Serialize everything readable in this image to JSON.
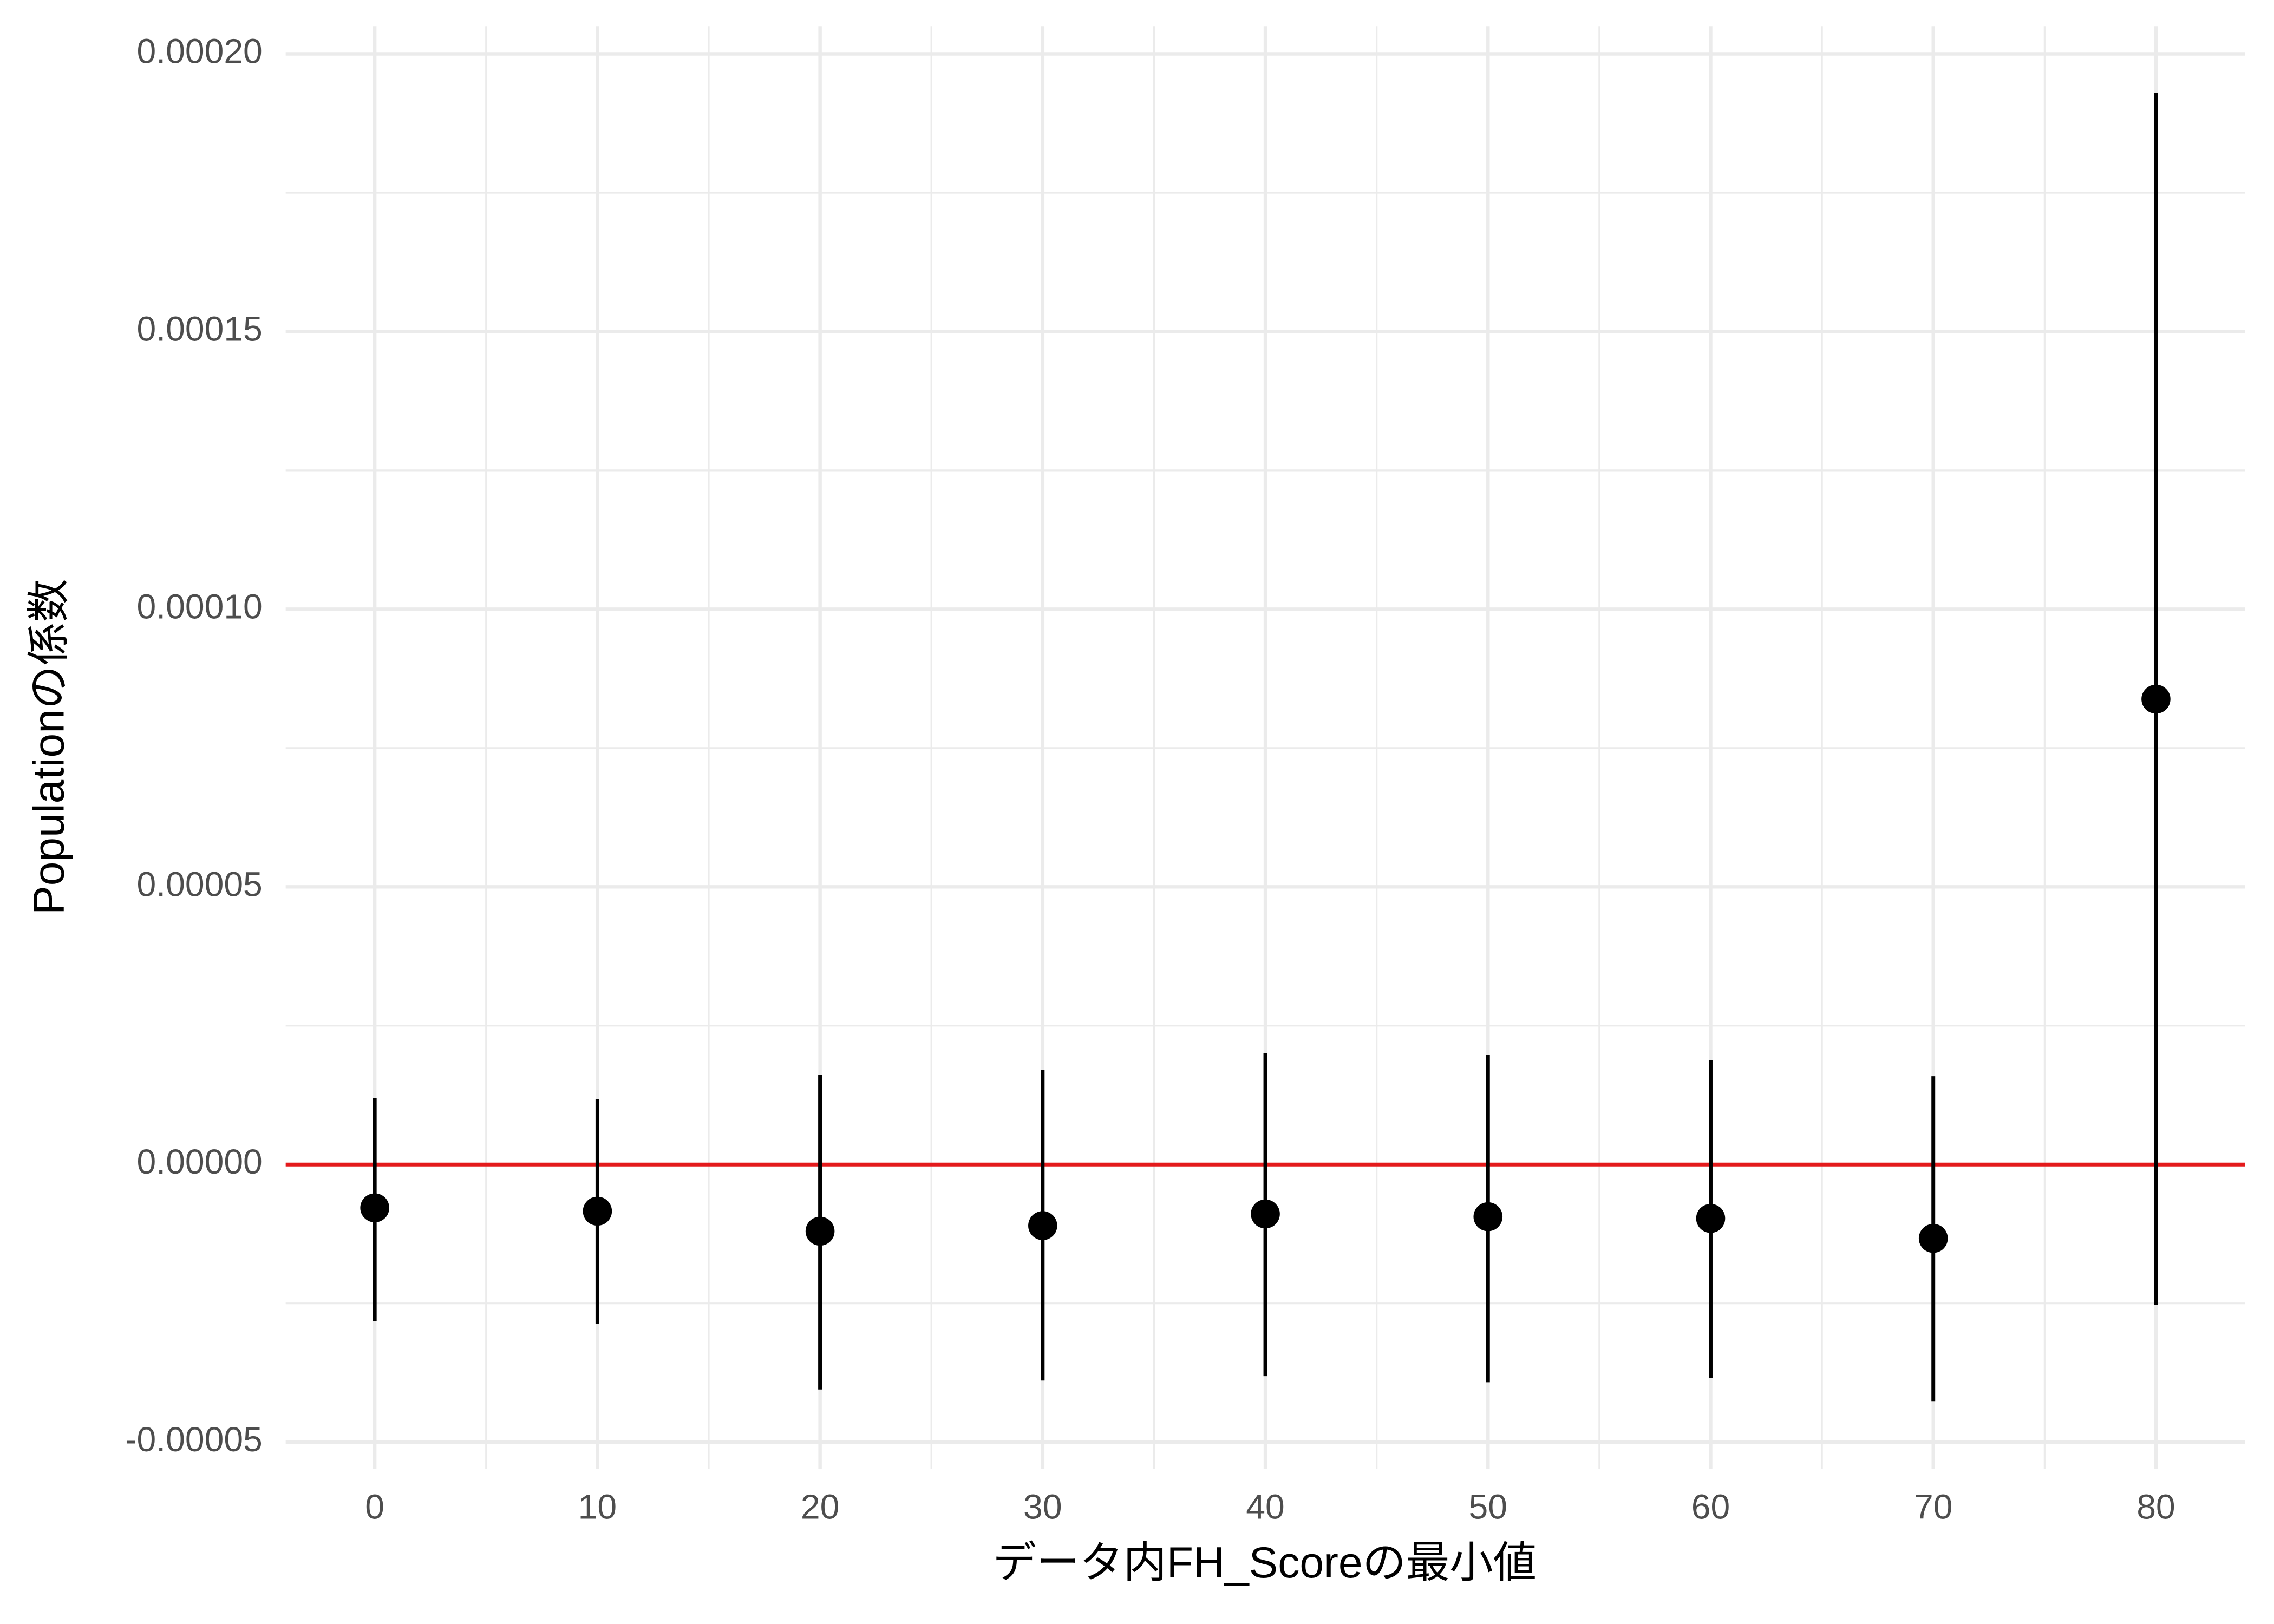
{
  "chart_data": {
    "type": "pointrange",
    "x_label": "データ内FH_Scoreの最小値",
    "y_label": "Populationの係数",
    "x": [
      0,
      10,
      20,
      30,
      40,
      50,
      60,
      70,
      80
    ],
    "values": [
      -7.8e-06,
      -8.4e-06,
      -1.2e-05,
      -1.1e-05,
      -8.9e-06,
      -9.4e-06,
      -9.7e-06,
      -1.33e-05,
      8.38e-05
    ],
    "lower": [
      -2.82e-05,
      -2.87e-05,
      -4.05e-05,
      -3.89e-05,
      -3.81e-05,
      -3.92e-05,
      -3.84e-05,
      -4.26e-05,
      -2.53e-05
    ],
    "upper": [
      1.2e-05,
      1.18e-05,
      1.62e-05,
      1.7e-05,
      2.01e-05,
      1.98e-05,
      1.88e-05,
      1.59e-05,
      0.000193
    ],
    "color": "#000000",
    "xlim": [
      -4,
      84
    ],
    "ylim": [
      -5.48e-05,
      0.000205
    ],
    "xticks": [
      0,
      10,
      20,
      30,
      40,
      50,
      60,
      70,
      80
    ],
    "yticks": [
      {
        "value": -5e-05,
        "label": "-0.00005"
      },
      {
        "value": 0,
        "label": "0.00000"
      },
      {
        "value": 5e-05,
        "label": "0.00005"
      },
      {
        "value": 0.0001,
        "label": "0.00010"
      },
      {
        "value": 0.00015,
        "label": "0.00015"
      },
      {
        "value": 0.0002,
        "label": "0.00020"
      }
    ],
    "hline": {
      "value": 0,
      "color": "#e41a1c"
    },
    "grid": true
  }
}
